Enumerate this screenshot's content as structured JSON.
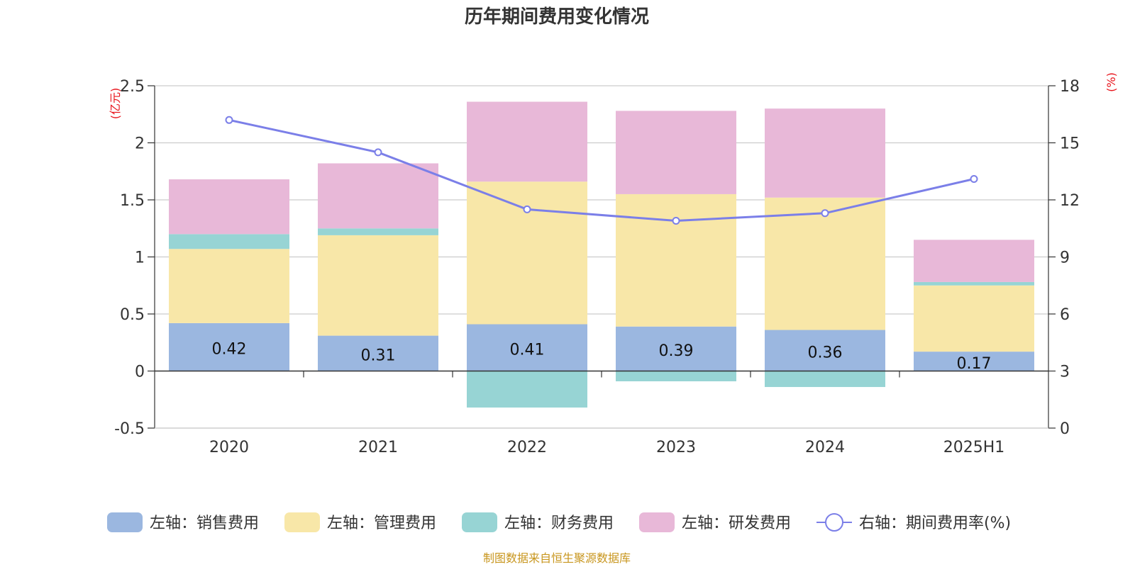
{
  "chart_data": {
    "type": "bar",
    "title": "历年期间费用变化情况",
    "categories": [
      "2020",
      "2021",
      "2022",
      "2023",
      "2024",
      "2025H1"
    ],
    "left_axis": {
      "unit": "(亿元)",
      "ylim": [
        -0.5,
        2.5
      ],
      "ticks": [
        "2.5",
        "2",
        "1.5",
        "1",
        "0.5",
        "0",
        "-0.5"
      ]
    },
    "right_axis": {
      "unit": "(%)",
      "ylim": [
        0,
        18
      ],
      "ticks": [
        "18",
        "15",
        "12",
        "9",
        "6",
        "3",
        "0"
      ]
    },
    "stacked": true,
    "series": [
      {
        "name": "左轴：销售费用",
        "color": "#9bb7e0",
        "values": [
          0.42,
          0.31,
          0.41,
          0.39,
          0.36,
          0.17
        ],
        "labels": [
          "0.42",
          "0.31",
          "0.41",
          "0.39",
          "0.36",
          "0.17"
        ]
      },
      {
        "name": "左轴：管理费用",
        "color": "#f8e7a8",
        "values": [
          0.65,
          0.88,
          1.25,
          1.16,
          1.16,
          0.58
        ]
      },
      {
        "name": "左轴：财务费用",
        "color": "#97d4d4",
        "values": [
          0.13,
          0.06,
          -0.32,
          -0.09,
          -0.14,
          0.03
        ]
      },
      {
        "name": "左轴：研发费用",
        "color": "#e8b8d8",
        "values": [
          0.48,
          0.57,
          0.7,
          0.73,
          0.78,
          0.37
        ]
      }
    ],
    "line_series": {
      "name": "右轴：期间费用率(%)",
      "color": "#7b7fe8",
      "axis": "right",
      "values": [
        16.2,
        14.5,
        11.5,
        10.9,
        11.3,
        13.1
      ]
    },
    "legend_position": "bottom",
    "grid": true
  },
  "source_note": "制图数据来自恒生聚源数据库"
}
